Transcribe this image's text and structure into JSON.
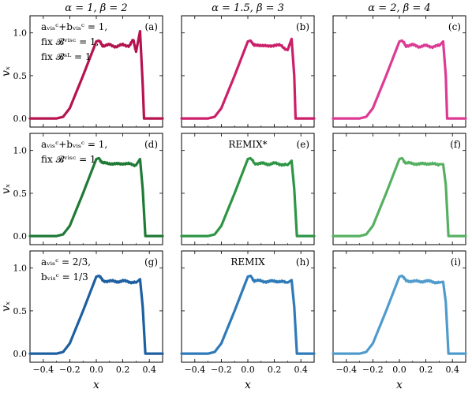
{
  "column_titles": [
    "α = 1, β = 2",
    "α = 1.5, β = 3",
    "α = 2, β = 4"
  ],
  "xlabel": "x",
  "ylabel": "vₓ",
  "xlim": [
    -0.5,
    0.5
  ],
  "ylim": [
    -0.1,
    1.2
  ],
  "x_ticks": [
    "−0.4",
    "−0.2",
    "0.0",
    "0.2",
    "0.4"
  ],
  "y_ticks": [
    "0.0",
    "0.5",
    "1.0"
  ],
  "row_annotations": [
    [
      "aᵥᵢₛᶜ+bᵥᵢₛᶜ = 1,",
      "fix 𝓑ᵛⁱˢᶜ = 1,",
      "fix 𝓑ˢᴸ = 1"
    ],
    [
      "aᵥᵢₛᶜ+bᵥᵢₛᶜ = 1,",
      "fix 𝓑ᵛⁱˢᶜ = 1"
    ],
    [
      "aᵥᵢₛᶜ = 2/3,",
      "bᵥᵢₛᶜ = 1/3"
    ]
  ],
  "method_labels": [
    "",
    "REMIX*",
    "REMIX"
  ],
  "colors": [
    [
      "#b5134f",
      "#cc1f6a",
      "#dd3a94"
    ],
    [
      "#1f7a35",
      "#2e9545",
      "#56b061"
    ],
    [
      "#1d5fa0",
      "#2e7ab8",
      "#4f9ccc"
    ]
  ],
  "chart_data": [
    {
      "type": "line",
      "panel": "(a)",
      "series": [
        {
          "values_description_points": [
            [
              -0.5,
              0.0
            ],
            [
              -0.3,
              0.0
            ],
            [
              -0.25,
              0.02
            ],
            [
              -0.2,
              0.12
            ],
            [
              -0.1,
              0.5
            ],
            [
              0.0,
              0.9
            ],
            [
              0.02,
              0.91
            ],
            [
              0.05,
              0.85
            ],
            [
              0.1,
              0.86
            ],
            [
              0.15,
              0.84
            ],
            [
              0.2,
              0.86
            ],
            [
              0.25,
              0.85
            ],
            [
              0.28,
              0.92
            ],
            [
              0.3,
              0.78
            ],
            [
              0.33,
              1.02
            ],
            [
              0.35,
              0.4
            ],
            [
              0.36,
              0.0
            ],
            [
              0.5,
              0.0
            ]
          ]
        }
      ]
    },
    {
      "type": "line",
      "panel": "(b)",
      "series": [
        {
          "values_description_points": [
            [
              -0.5,
              0.0
            ],
            [
              -0.3,
              0.0
            ],
            [
              -0.25,
              0.02
            ],
            [
              -0.2,
              0.12
            ],
            [
              -0.1,
              0.5
            ],
            [
              0.0,
              0.9
            ],
            [
              0.02,
              0.91
            ],
            [
              0.05,
              0.85
            ],
            [
              0.1,
              0.86
            ],
            [
              0.15,
              0.84
            ],
            [
              0.2,
              0.86
            ],
            [
              0.25,
              0.85
            ],
            [
              0.3,
              0.8
            ],
            [
              0.33,
              0.93
            ],
            [
              0.35,
              0.5
            ],
            [
              0.36,
              0.0
            ],
            [
              0.5,
              0.0
            ]
          ]
        }
      ]
    },
    {
      "type": "line",
      "panel": "(c)",
      "series": [
        {
          "values_description_points": [
            [
              -0.5,
              0.0
            ],
            [
              -0.3,
              0.0
            ],
            [
              -0.25,
              0.02
            ],
            [
              -0.2,
              0.12
            ],
            [
              -0.1,
              0.5
            ],
            [
              0.0,
              0.9
            ],
            [
              0.02,
              0.91
            ],
            [
              0.05,
              0.85
            ],
            [
              0.1,
              0.86
            ],
            [
              0.15,
              0.84
            ],
            [
              0.2,
              0.85
            ],
            [
              0.25,
              0.84
            ],
            [
              0.3,
              0.85
            ],
            [
              0.33,
              0.9
            ],
            [
              0.35,
              0.5
            ],
            [
              0.36,
              0.0
            ],
            [
              0.5,
              0.0
            ]
          ]
        }
      ]
    },
    {
      "type": "line",
      "panel": "(d)",
      "series": [
        {
          "values_description_points": [
            [
              -0.5,
              0.0
            ],
            [
              -0.3,
              0.0
            ],
            [
              -0.25,
              0.02
            ],
            [
              -0.2,
              0.12
            ],
            [
              -0.1,
              0.5
            ],
            [
              0.0,
              0.9
            ],
            [
              0.02,
              0.91
            ],
            [
              0.05,
              0.85
            ],
            [
              0.1,
              0.85
            ],
            [
              0.15,
              0.84
            ],
            [
              0.2,
              0.85
            ],
            [
              0.25,
              0.84
            ],
            [
              0.3,
              0.83
            ],
            [
              0.33,
              0.9
            ],
            [
              0.35,
              0.55
            ],
            [
              0.37,
              0.0
            ],
            [
              0.5,
              0.0
            ]
          ]
        }
      ]
    },
    {
      "type": "line",
      "panel": "(e)",
      "series": [
        {
          "values_description_points": [
            [
              -0.5,
              0.0
            ],
            [
              -0.3,
              0.0
            ],
            [
              -0.25,
              0.02
            ],
            [
              -0.2,
              0.12
            ],
            [
              -0.1,
              0.5
            ],
            [
              0.0,
              0.9
            ],
            [
              0.02,
              0.91
            ],
            [
              0.05,
              0.85
            ],
            [
              0.1,
              0.85
            ],
            [
              0.15,
              0.84
            ],
            [
              0.2,
              0.85
            ],
            [
              0.25,
              0.84
            ],
            [
              0.3,
              0.83
            ],
            [
              0.33,
              0.88
            ],
            [
              0.35,
              0.55
            ],
            [
              0.37,
              0.0
            ],
            [
              0.5,
              0.0
            ]
          ]
        }
      ]
    },
    {
      "type": "line",
      "panel": "(f)",
      "series": [
        {
          "values_description_points": [
            [
              -0.5,
              0.0
            ],
            [
              -0.3,
              0.0
            ],
            [
              -0.25,
              0.02
            ],
            [
              -0.2,
              0.12
            ],
            [
              -0.1,
              0.5
            ],
            [
              0.0,
              0.9
            ],
            [
              0.02,
              0.91
            ],
            [
              0.05,
              0.85
            ],
            [
              0.1,
              0.85
            ],
            [
              0.15,
              0.84
            ],
            [
              0.2,
              0.85
            ],
            [
              0.25,
              0.84
            ],
            [
              0.3,
              0.84
            ],
            [
              0.33,
              0.84
            ],
            [
              0.35,
              0.6
            ],
            [
              0.37,
              0.0
            ],
            [
              0.5,
              0.0
            ]
          ]
        }
      ]
    },
    {
      "type": "line",
      "panel": "(g)",
      "series": [
        {
          "values_description_points": [
            [
              -0.5,
              0.0
            ],
            [
              -0.3,
              0.0
            ],
            [
              -0.25,
              0.02
            ],
            [
              -0.2,
              0.12
            ],
            [
              -0.1,
              0.5
            ],
            [
              0.0,
              0.9
            ],
            [
              0.02,
              0.91
            ],
            [
              0.05,
              0.85
            ],
            [
              0.1,
              0.85
            ],
            [
              0.15,
              0.84
            ],
            [
              0.2,
              0.85
            ],
            [
              0.25,
              0.84
            ],
            [
              0.3,
              0.83
            ],
            [
              0.33,
              0.87
            ],
            [
              0.35,
              0.55
            ],
            [
              0.37,
              0.0
            ],
            [
              0.5,
              0.0
            ]
          ]
        }
      ]
    },
    {
      "type": "line",
      "panel": "(h)",
      "series": [
        {
          "values_description_points": [
            [
              -0.5,
              0.0
            ],
            [
              -0.3,
              0.0
            ],
            [
              -0.25,
              0.02
            ],
            [
              -0.2,
              0.12
            ],
            [
              -0.1,
              0.5
            ],
            [
              0.0,
              0.9
            ],
            [
              0.02,
              0.91
            ],
            [
              0.05,
              0.85
            ],
            [
              0.1,
              0.85
            ],
            [
              0.15,
              0.84
            ],
            [
              0.2,
              0.85
            ],
            [
              0.25,
              0.84
            ],
            [
              0.3,
              0.83
            ],
            [
              0.33,
              0.86
            ],
            [
              0.35,
              0.55
            ],
            [
              0.37,
              0.0
            ],
            [
              0.5,
              0.0
            ]
          ]
        }
      ]
    },
    {
      "type": "line",
      "panel": "(i)",
      "series": [
        {
          "values_description_points": [
            [
              -0.5,
              0.0
            ],
            [
              -0.3,
              0.0
            ],
            [
              -0.25,
              0.02
            ],
            [
              -0.2,
              0.12
            ],
            [
              -0.1,
              0.5
            ],
            [
              0.0,
              0.9
            ],
            [
              0.02,
              0.91
            ],
            [
              0.05,
              0.85
            ],
            [
              0.1,
              0.85
            ],
            [
              0.15,
              0.84
            ],
            [
              0.2,
              0.85
            ],
            [
              0.25,
              0.84
            ],
            [
              0.3,
              0.83
            ],
            [
              0.33,
              0.84
            ],
            [
              0.35,
              0.6
            ],
            [
              0.37,
              0.0
            ],
            [
              0.5,
              0.0
            ]
          ]
        }
      ]
    }
  ]
}
